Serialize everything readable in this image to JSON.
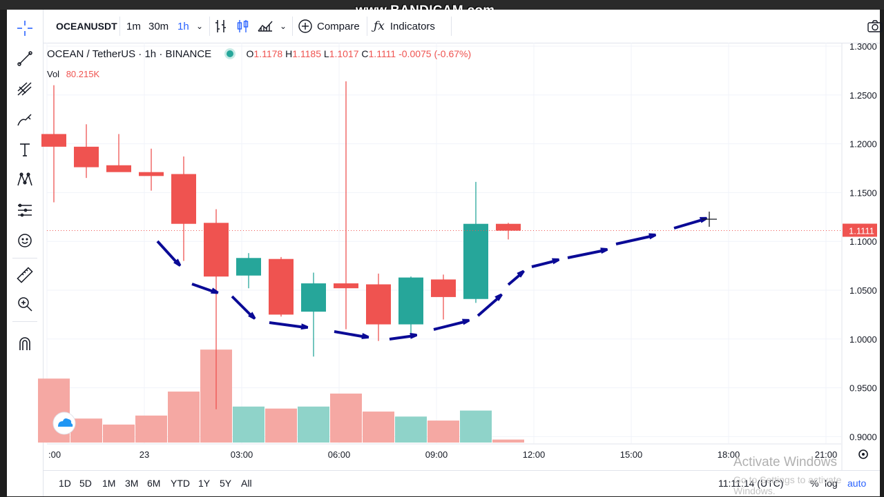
{
  "watermark": "www.BANDICAM.com",
  "toolbar": {
    "symbol": "OCEANUSDT",
    "intervals": [
      "1m",
      "30m",
      "1h"
    ],
    "compare_label": "Compare",
    "indicators_label": "Indicators"
  },
  "legend": {
    "pair": "OCEAN / TetherUS",
    "interval": "1h",
    "exchange": "BINANCE",
    "open": "1.1178",
    "high": "1.1185",
    "low": "1.1017",
    "close": "1.1111",
    "change": "-0.0075 (-0.67%)",
    "vol_label": "Vol",
    "vol_value": "80.215K"
  },
  "price_axis": {
    "ticks": [
      "1.3000",
      "1.2500",
      "1.2000",
      "1.1500",
      "1.1000",
      "1.0500",
      "1.0000",
      "0.9500",
      "0.9000"
    ],
    "last_price": "1.1111"
  },
  "time_axis": [
    ":00",
    "23",
    "03:00",
    "06:00",
    "09:00",
    "12:00",
    "15:00",
    "18:00",
    "21:00"
  ],
  "candles": [
    {
      "o": 1.21,
      "h": 1.26,
      "l": 1.14,
      "c": 1.197
    },
    {
      "o": 1.197,
      "h": 1.22,
      "l": 1.165,
      "c": 1.176
    },
    {
      "o": 1.178,
      "h": 1.21,
      "l": 1.172,
      "c": 1.171
    },
    {
      "o": 1.171,
      "h": 1.195,
      "l": 1.152,
      "c": 1.167
    },
    {
      "o": 1.169,
      "h": 1.187,
      "l": 1.08,
      "c": 1.118
    },
    {
      "o": 1.119,
      "h": 1.133,
      "l": 0.928,
      "c": 1.064
    },
    {
      "o": 1.065,
      "h": 1.088,
      "l": 1.052,
      "c": 1.083
    },
    {
      "o": 1.082,
      "h": 1.084,
      "l": 1.023,
      "c": 1.025
    },
    {
      "o": 1.028,
      "h": 1.068,
      "l": 0.982,
      "c": 1.057
    },
    {
      "o": 1.057,
      "h": 1.264,
      "l": 1.01,
      "c": 1.052
    },
    {
      "o": 1.056,
      "h": 1.067,
      "l": 0.998,
      "c": 1.015
    },
    {
      "o": 1.015,
      "h": 1.064,
      "l": 1.003,
      "c": 1.063
    },
    {
      "o": 1.061,
      "h": 1.066,
      "l": 1.02,
      "c": 1.043
    },
    {
      "o": 1.041,
      "h": 1.161,
      "l": 1.037,
      "c": 1.118
    },
    {
      "o": 1.118,
      "h": 1.119,
      "l": 1.102,
      "c": 1.111
    }
  ],
  "volumes": [
    0.64,
    0.24,
    0.18,
    0.27,
    0.51,
    0.93,
    0.36,
    0.34,
    0.36,
    0.49,
    0.31,
    0.26,
    0.22,
    0.32,
    0.03
  ],
  "ranges": [
    "1D",
    "5D",
    "1M",
    "3M",
    "6M",
    "YTD",
    "1Y",
    "5Y",
    "All"
  ],
  "status": {
    "clock": "11:11:14 (UTC)",
    "percent": "%",
    "log": "log",
    "auto": "auto"
  },
  "os_watermark": {
    "title": "Activate Windows",
    "subtitle": "Go to Settings to activate Windows."
  },
  "colors": {
    "up": "#26a69a",
    "down": "#ef5350",
    "vol_up": "#8fd3c9",
    "vol_down": "#f5a8a3",
    "arrow": "#0a0a96",
    "grid": "#f0f3fa"
  }
}
